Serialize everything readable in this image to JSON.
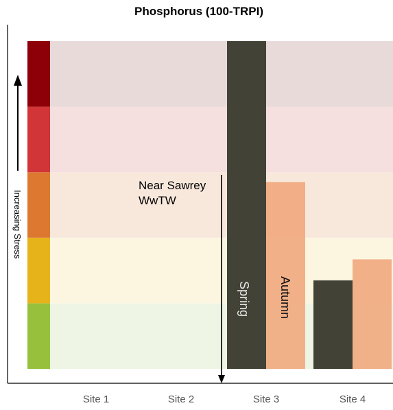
{
  "chart_data": {
    "type": "bar",
    "title": "Phosphorus (100-TRPI)",
    "xlabel": "",
    "ylabel": "",
    "categories": [
      "Site 1",
      "Site 2",
      "Site 3",
      "Site 4"
    ],
    "series": [
      {
        "name": "Spring",
        "color": "#3e3e33",
        "values": [
          null,
          null,
          5.0,
          1.35
        ]
      },
      {
        "name": "Autumn",
        "color": "#f0a378",
        "values": [
          null,
          null,
          2.85,
          1.67
        ]
      }
    ],
    "ylim": [
      0,
      5
    ],
    "bands": [
      {
        "from": 0,
        "to": 1,
        "color": "#97c13d",
        "fill": "#eff5e5"
      },
      {
        "from": 1,
        "to": 2,
        "color": "#e7b31b",
        "fill": "#fcf6e1"
      },
      {
        "from": 2,
        "to": 3,
        "color": "#dd7831",
        "fill": "#f8e8dc"
      },
      {
        "from": 3,
        "to": 4,
        "color": "#d13537",
        "fill": "#f5dfdf"
      },
      {
        "from": 4,
        "to": 5,
        "color": "#8e0007",
        "fill": "#e9dada"
      }
    ],
    "stress_label": "Increasing Stress",
    "annotation": {
      "line1": "Near Sawrey",
      "line2": "WwTW"
    },
    "grid": false,
    "legend": "inside-bars"
  }
}
